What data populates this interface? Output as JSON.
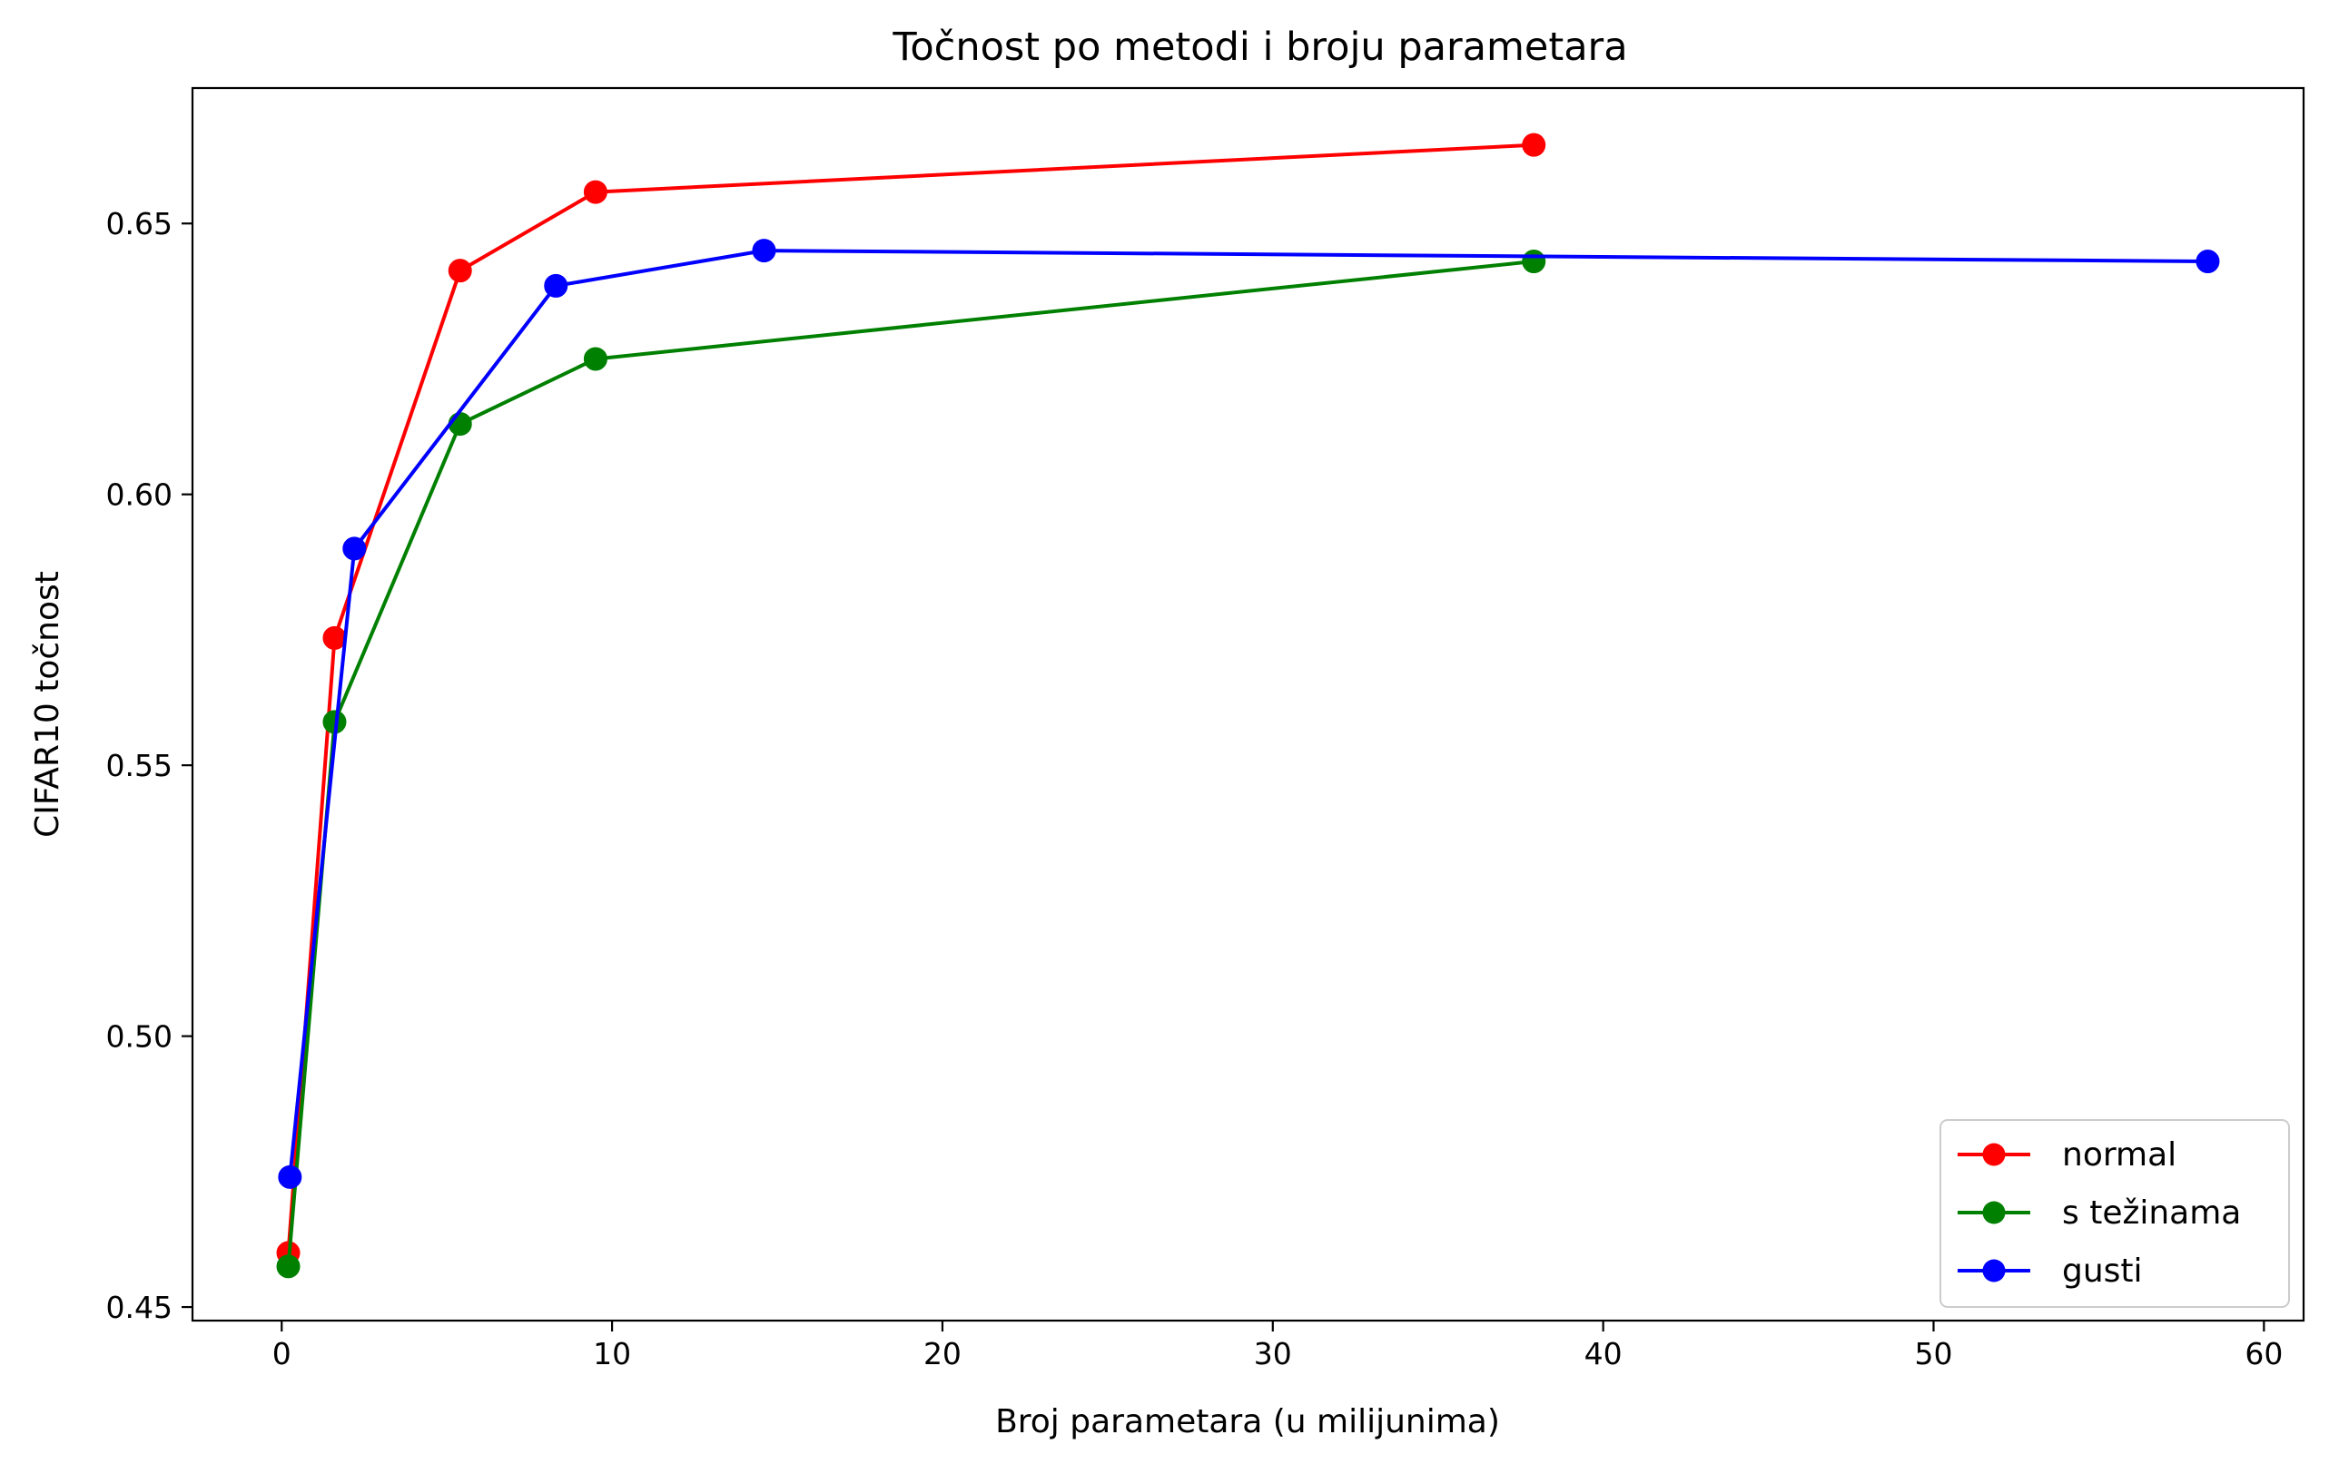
{
  "chart_data": {
    "type": "line",
    "title": "Točnost po metodi i broju parametara",
    "xlabel": "Broj parametara (u milijunima)",
    "ylabel": "CIFAR10 točnost",
    "xlim": [
      -2.7,
      61.2
    ],
    "ylim": [
      0.4475,
      0.675
    ],
    "xticks": [
      0,
      10,
      20,
      30,
      40,
      50,
      60
    ],
    "xtick_labels": [
      "0",
      "10",
      "20",
      "30",
      "40",
      "50",
      "60"
    ],
    "yticks": [
      0.45,
      0.5,
      0.55,
      0.6,
      0.65
    ],
    "ytick_labels": [
      "0.45",
      "0.50",
      "0.55",
      "0.60",
      "0.65"
    ],
    "grid": false,
    "legend_position": "bottom-right",
    "series": [
      {
        "name": "normal",
        "color": "#ff0000",
        "marker": "circle",
        "x": [
          0.2,
          1.6,
          5.4,
          9.5,
          37.9
        ],
        "y": [
          0.46,
          0.5735,
          0.6413,
          0.6558,
          0.6645
        ]
      },
      {
        "name": "s težinama",
        "color": "#008000",
        "marker": "circle",
        "x": [
          0.2,
          1.6,
          5.4,
          9.5,
          37.9
        ],
        "y": [
          0.4575,
          0.558,
          0.613,
          0.625,
          0.643
        ]
      },
      {
        "name": "gusti",
        "color": "#0000ff",
        "marker": "circle",
        "x": [
          0.25,
          2.2,
          8.3,
          14.6,
          58.3
        ],
        "y": [
          0.474,
          0.59,
          0.6385,
          0.645,
          0.643
        ]
      }
    ]
  }
}
